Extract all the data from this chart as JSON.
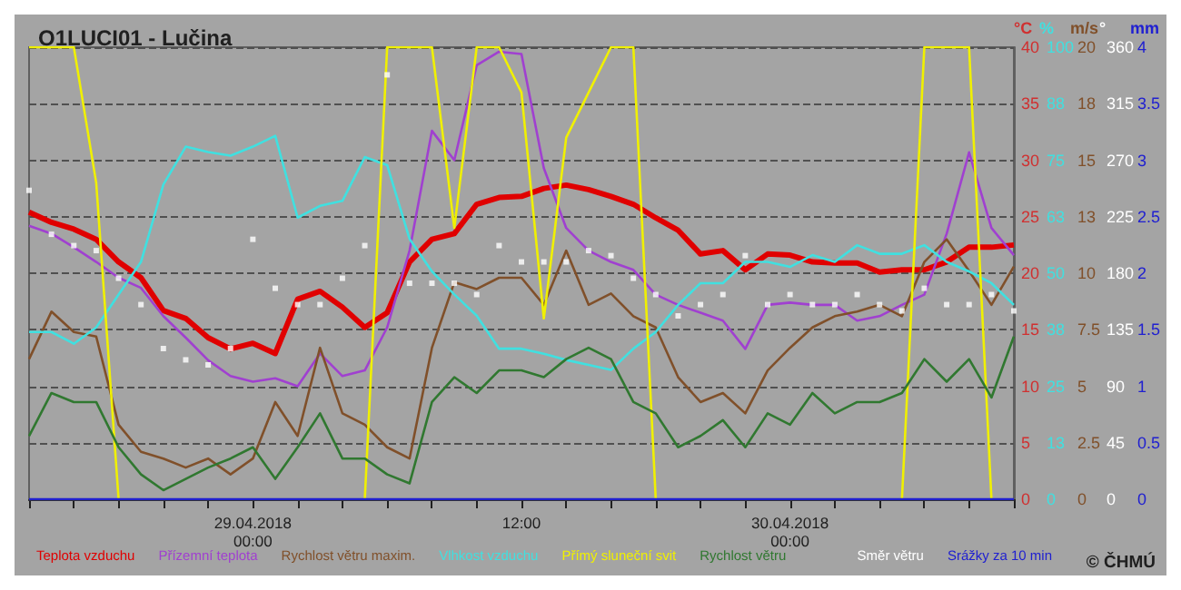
{
  "chart_data": [
    {
      "type": "line",
      "title": "O1LUCI01 - Lučina",
      "ylabel": "°C",
      "y2label": "%",
      "y3label": "m/s",
      "x": [
        "2018-04-28T14:00",
        "2018-04-28T15:00",
        "2018-04-28T16:00",
        "2018-04-28T17:00",
        "2018-04-28T18:00",
        "2018-04-28T19:00",
        "2018-04-28T20:00",
        "2018-04-28T21:00",
        "2018-04-28T22:00",
        "2018-04-28T23:00",
        "2018-04-29T00:00",
        "2018-04-29T01:00",
        "2018-04-29T02:00",
        "2018-04-29T03:00",
        "2018-04-29T04:00",
        "2018-04-29T05:00",
        "2018-04-29T06:00",
        "2018-04-29T07:00",
        "2018-04-29T08:00",
        "2018-04-29T09:00",
        "2018-04-29T10:00",
        "2018-04-29T11:00",
        "2018-04-29T12:00",
        "2018-04-29T13:00",
        "2018-04-29T14:00",
        "2018-04-29T15:00",
        "2018-04-29T16:00",
        "2018-04-29T17:00",
        "2018-04-29T18:00",
        "2018-04-29T19:00",
        "2018-04-29T20:00",
        "2018-04-29T21:00",
        "2018-04-29T22:00",
        "2018-04-29T23:00",
        "2018-04-30T00:00",
        "2018-04-30T01:00",
        "2018-04-30T02:00",
        "2018-04-30T03:00",
        "2018-04-30T04:00",
        "2018-04-30T05:00",
        "2018-04-30T06:00",
        "2018-04-30T07:00",
        "2018-04-30T08:00",
        "2018-04-30T09:00",
        "2018-04-30T10:00"
      ],
      "series": [
        {
          "name": "Teplota vzduchu",
          "color": "#e00000",
          "values": [
            25.4,
            24.5,
            23.9,
            23,
            21,
            19.6,
            16.7,
            16,
            14.3,
            13.3,
            13.8,
            12.9,
            17.7,
            18.4,
            17,
            15.2,
            16.5,
            21,
            23,
            23.5,
            26.1,
            26.7,
            26.8,
            27.5,
            27.8,
            27.4,
            26.8,
            26.1,
            24.9,
            23.8,
            21.7,
            22,
            20.3,
            21.7,
            21.6,
            21,
            20.9,
            20.9,
            20.1,
            20.3,
            20.3,
            21,
            22.3,
            22.3,
            22.5
          ]
        },
        {
          "name": "Přízemní teplota",
          "color": "#a040d0",
          "values": [
            24.2,
            23.5,
            22.3,
            21,
            19.6,
            18.7,
            16.2,
            14.3,
            12.3,
            10.9,
            10.4,
            10.7,
            10,
            12.9,
            10.9,
            11.4,
            15.2,
            22,
            32.6,
            30,
            38.4,
            39.6,
            39.4,
            29.3,
            24,
            22,
            21,
            20.3,
            18.1,
            17.2,
            16.5,
            15.8,
            13.3,
            17.2,
            17.4,
            17.2,
            17.2,
            15.8,
            16.2,
            17.2,
            18.1,
            23.5,
            30.7,
            24,
            21.6
          ]
        },
        {
          "name": "Rychlost větru maxim.",
          "color": "#80502a",
          "axis": "y3",
          "values": [
            6.2,
            8.3,
            7.4,
            7.2,
            3.3,
            2.1,
            1.8,
            1.4,
            1.8,
            1.1,
            1.8,
            4.3,
            2.8,
            6.7,
            3.8,
            3.3,
            2.3,
            1.8,
            6.7,
            9.6,
            9.3,
            9.8,
            9.8,
            8.6,
            11,
            8.6,
            9.1,
            8.1,
            7.6,
            5.4,
            4.3,
            4.7,
            3.8,
            5.7,
            6.7,
            7.6,
            8.1,
            8.3,
            8.6,
            8.1,
            10.5,
            11.5,
            10.1,
            8.6,
            10.3
          ]
        },
        {
          "name": "Vlhkost vzduchu",
          "color": "#40e0e0",
          "axis": "y2",
          "values": [
            37,
            37,
            34.4,
            38,
            45.3,
            52.5,
            69.6,
            78,
            76.8,
            76,
            78,
            80.4,
            62.3,
            64.9,
            66,
            75.7,
            73.9,
            57.6,
            50.4,
            45.3,
            40.6,
            33.3,
            33.3,
            32.2,
            30.8,
            29.7,
            28.6,
            33.3,
            37,
            43,
            47.8,
            47.8,
            52.5,
            52.5,
            51.4,
            54,
            52.5,
            56.2,
            54.3,
            54.3,
            56.2,
            52.5,
            50.4,
            47.8,
            43
          ]
        },
        {
          "name": "Přímý sluneční svit",
          "color": "#f0f000",
          "axis": "y2",
          "values": [
            100,
            100,
            100,
            70,
            0,
            null,
            null,
            null,
            null,
            null,
            null,
            null,
            null,
            null,
            null,
            0,
            100,
            100,
            100,
            60,
            100,
            100,
            90,
            40,
            80,
            90,
            100,
            100,
            0,
            null,
            null,
            null,
            null,
            null,
            null,
            null,
            null,
            null,
            null,
            0,
            100,
            100,
            100,
            0,
            null
          ]
        },
        {
          "name": "Rychlost větru",
          "color": "#307830",
          "axis": "y3",
          "values": [
            2.8,
            4.7,
            4.3,
            4.3,
            2.3,
            1.1,
            0.4,
            0.9,
            1.4,
            1.8,
            2.3,
            0.9,
            2.3,
            3.8,
            1.8,
            1.8,
            1.1,
            0.7,
            4.3,
            5.4,
            4.7,
            5.7,
            5.7,
            5.4,
            6.2,
            6.7,
            6.2,
            4.3,
            3.8,
            2.3,
            2.8,
            3.5,
            2.3,
            3.8,
            3.3,
            4.7,
            3.8,
            4.3,
            4.3,
            4.7,
            6.2,
            5.2,
            6.2,
            4.5,
            7.2
          ]
        }
      ],
      "xlim": [
        "2018-04-28T14:00",
        "2018-04-30T10:00"
      ],
      "xticks": [
        {
          "value": "2018-04-28T14:00",
          "label": null
        },
        {
          "value": "2018-04-28T16:00",
          "label": null
        },
        {
          "value": "2018-04-28T18:00",
          "label": null
        },
        {
          "value": "2018-04-28T20:00",
          "label": null
        },
        {
          "value": "2018-04-28T22:00",
          "label": null
        },
        {
          "value": "2018-04-29T00:00",
          "label": "29.04.2018\n00:00"
        },
        {
          "value": "2018-04-29T02:00",
          "label": null
        },
        {
          "value": "2018-04-29T04:00",
          "label": null
        },
        {
          "value": "2018-04-29T06:00",
          "label": null
        },
        {
          "value": "2018-04-29T08:00",
          "label": null
        },
        {
          "value": "2018-04-29T10:00",
          "label": null
        },
        {
          "value": "2018-04-29T12:00",
          "label": "12:00"
        },
        {
          "value": "2018-04-29T14:00",
          "label": null
        },
        {
          "value": "2018-04-29T16:00",
          "label": null
        },
        {
          "value": "2018-04-29T18:00",
          "label": null
        },
        {
          "value": "2018-04-29T20:00",
          "label": null
        },
        {
          "value": "2018-04-29T22:00",
          "label": null
        },
        {
          "value": "2018-04-30T00:00",
          "label": "30.04.2018\n00:00"
        },
        {
          "value": "2018-04-30T02:00",
          "label": null
        },
        {
          "value": "2018-04-30T04:00",
          "label": null
        },
        {
          "value": "2018-04-30T06:00",
          "label": null
        },
        {
          "value": "2018-04-30T08:00",
          "label": null
        },
        {
          "value": "2018-04-30T10:00",
          "label": null
        }
      ],
      "ylim": [
        0,
        40
      ],
      "yticks": [
        0,
        5,
        10,
        15,
        20,
        25,
        30,
        35,
        40
      ],
      "y2lim": [
        0,
        100
      ],
      "y2ticks": [
        0,
        {
          "value": 12.5,
          "label": "13"
        },
        25,
        {
          "value": 37.5,
          "label": "38"
        },
        50,
        {
          "value": 62.5,
          "label": "63"
        },
        75,
        {
          "value": 87.5,
          "label": "88"
        },
        100
      ],
      "y3lim": [
        0,
        20
      ],
      "y3ticks": [
        0,
        2.5,
        5,
        7.5,
        10,
        {
          "value": 12.5,
          "label": "13"
        },
        15,
        {
          "value": 17.5,
          "label": "18"
        },
        20
      ],
      "grid": "y",
      "legend": "bottom",
      "marker": "none",
      "line_style": "solid",
      "annotations": [
        "© ČHMÚ"
      ]
    },
    {
      "type": "scatter",
      "ylabel": "°",
      "y2label": "mm",
      "tick_labels": "y",
      "x": [
        "2018-04-28T14:00",
        "2018-04-28T15:00",
        "2018-04-28T16:00",
        "2018-04-28T17:00",
        "2018-04-28T18:00",
        "2018-04-28T19:00",
        "2018-04-28T20:00",
        "2018-04-28T21:00",
        "2018-04-28T22:00",
        "2018-04-28T23:00",
        "2018-04-29T00:00",
        "2018-04-29T01:00",
        "2018-04-29T02:00",
        "2018-04-29T03:00",
        "2018-04-29T04:00",
        "2018-04-29T05:00",
        "2018-04-29T06:00",
        "2018-04-29T07:00",
        "2018-04-29T08:00",
        "2018-04-29T09:00",
        "2018-04-29T10:00",
        "2018-04-29T11:00",
        "2018-04-29T12:00",
        "2018-04-29T13:00",
        "2018-04-29T14:00",
        "2018-04-29T15:00",
        "2018-04-29T16:00",
        "2018-04-29T17:00",
        "2018-04-29T18:00",
        "2018-04-29T19:00",
        "2018-04-29T20:00",
        "2018-04-29T21:00",
        "2018-04-29T22:00",
        "2018-04-29T23:00",
        "2018-04-30T00:00",
        "2018-04-30T01:00",
        "2018-04-30T02:00",
        "2018-04-30T03:00",
        "2018-04-30T04:00",
        "2018-04-30T05:00",
        "2018-04-30T06:00",
        "2018-04-30T07:00",
        "2018-04-30T08:00",
        "2018-04-30T09:00",
        "2018-04-30T10:00"
      ],
      "series": [
        {
          "name": "Směr větru",
          "color": "#ffffff",
          "marker": "square",
          "values": [
            246,
            211,
            202,
            198,
            176,
            155,
            120,
            111,
            107,
            120,
            207,
            168,
            155,
            155,
            176,
            202,
            338,
            172,
            172,
            172,
            163,
            202,
            189,
            189,
            189,
            198,
            194,
            176,
            163,
            146,
            155,
            163,
            194,
            155,
            163,
            155,
            155,
            163,
            155,
            150,
            168,
            155,
            155,
            163,
            150
          ]
        },
        {
          "name": "Srážky za 10 min",
          "color": "#2020d0",
          "type": "line",
          "axis": "y2",
          "values": [
            0,
            0,
            0,
            0,
            0,
            0,
            0,
            0,
            0,
            0,
            0,
            0,
            0,
            0,
            0,
            0,
            0,
            0,
            0,
            0,
            0,
            0,
            0,
            0,
            0,
            0,
            0,
            0,
            0,
            0,
            0,
            0,
            0,
            0,
            0,
            0,
            0,
            0,
            0,
            0,
            0,
            0,
            0,
            0,
            0
          ]
        }
      ],
      "xlim": [
        "2018-04-28T14:00",
        "2018-04-30T10:00"
      ],
      "ylim": [
        0,
        360
      ],
      "yticks": [
        0,
        45,
        90,
        135,
        180,
        225,
        270,
        315,
        360
      ],
      "y2lim": [
        0,
        4
      ],
      "y2ticks": [
        0,
        0.5,
        1,
        1.5,
        2,
        2.5,
        3,
        3.5,
        4
      ],
      "legend": "bottom"
    }
  ]
}
